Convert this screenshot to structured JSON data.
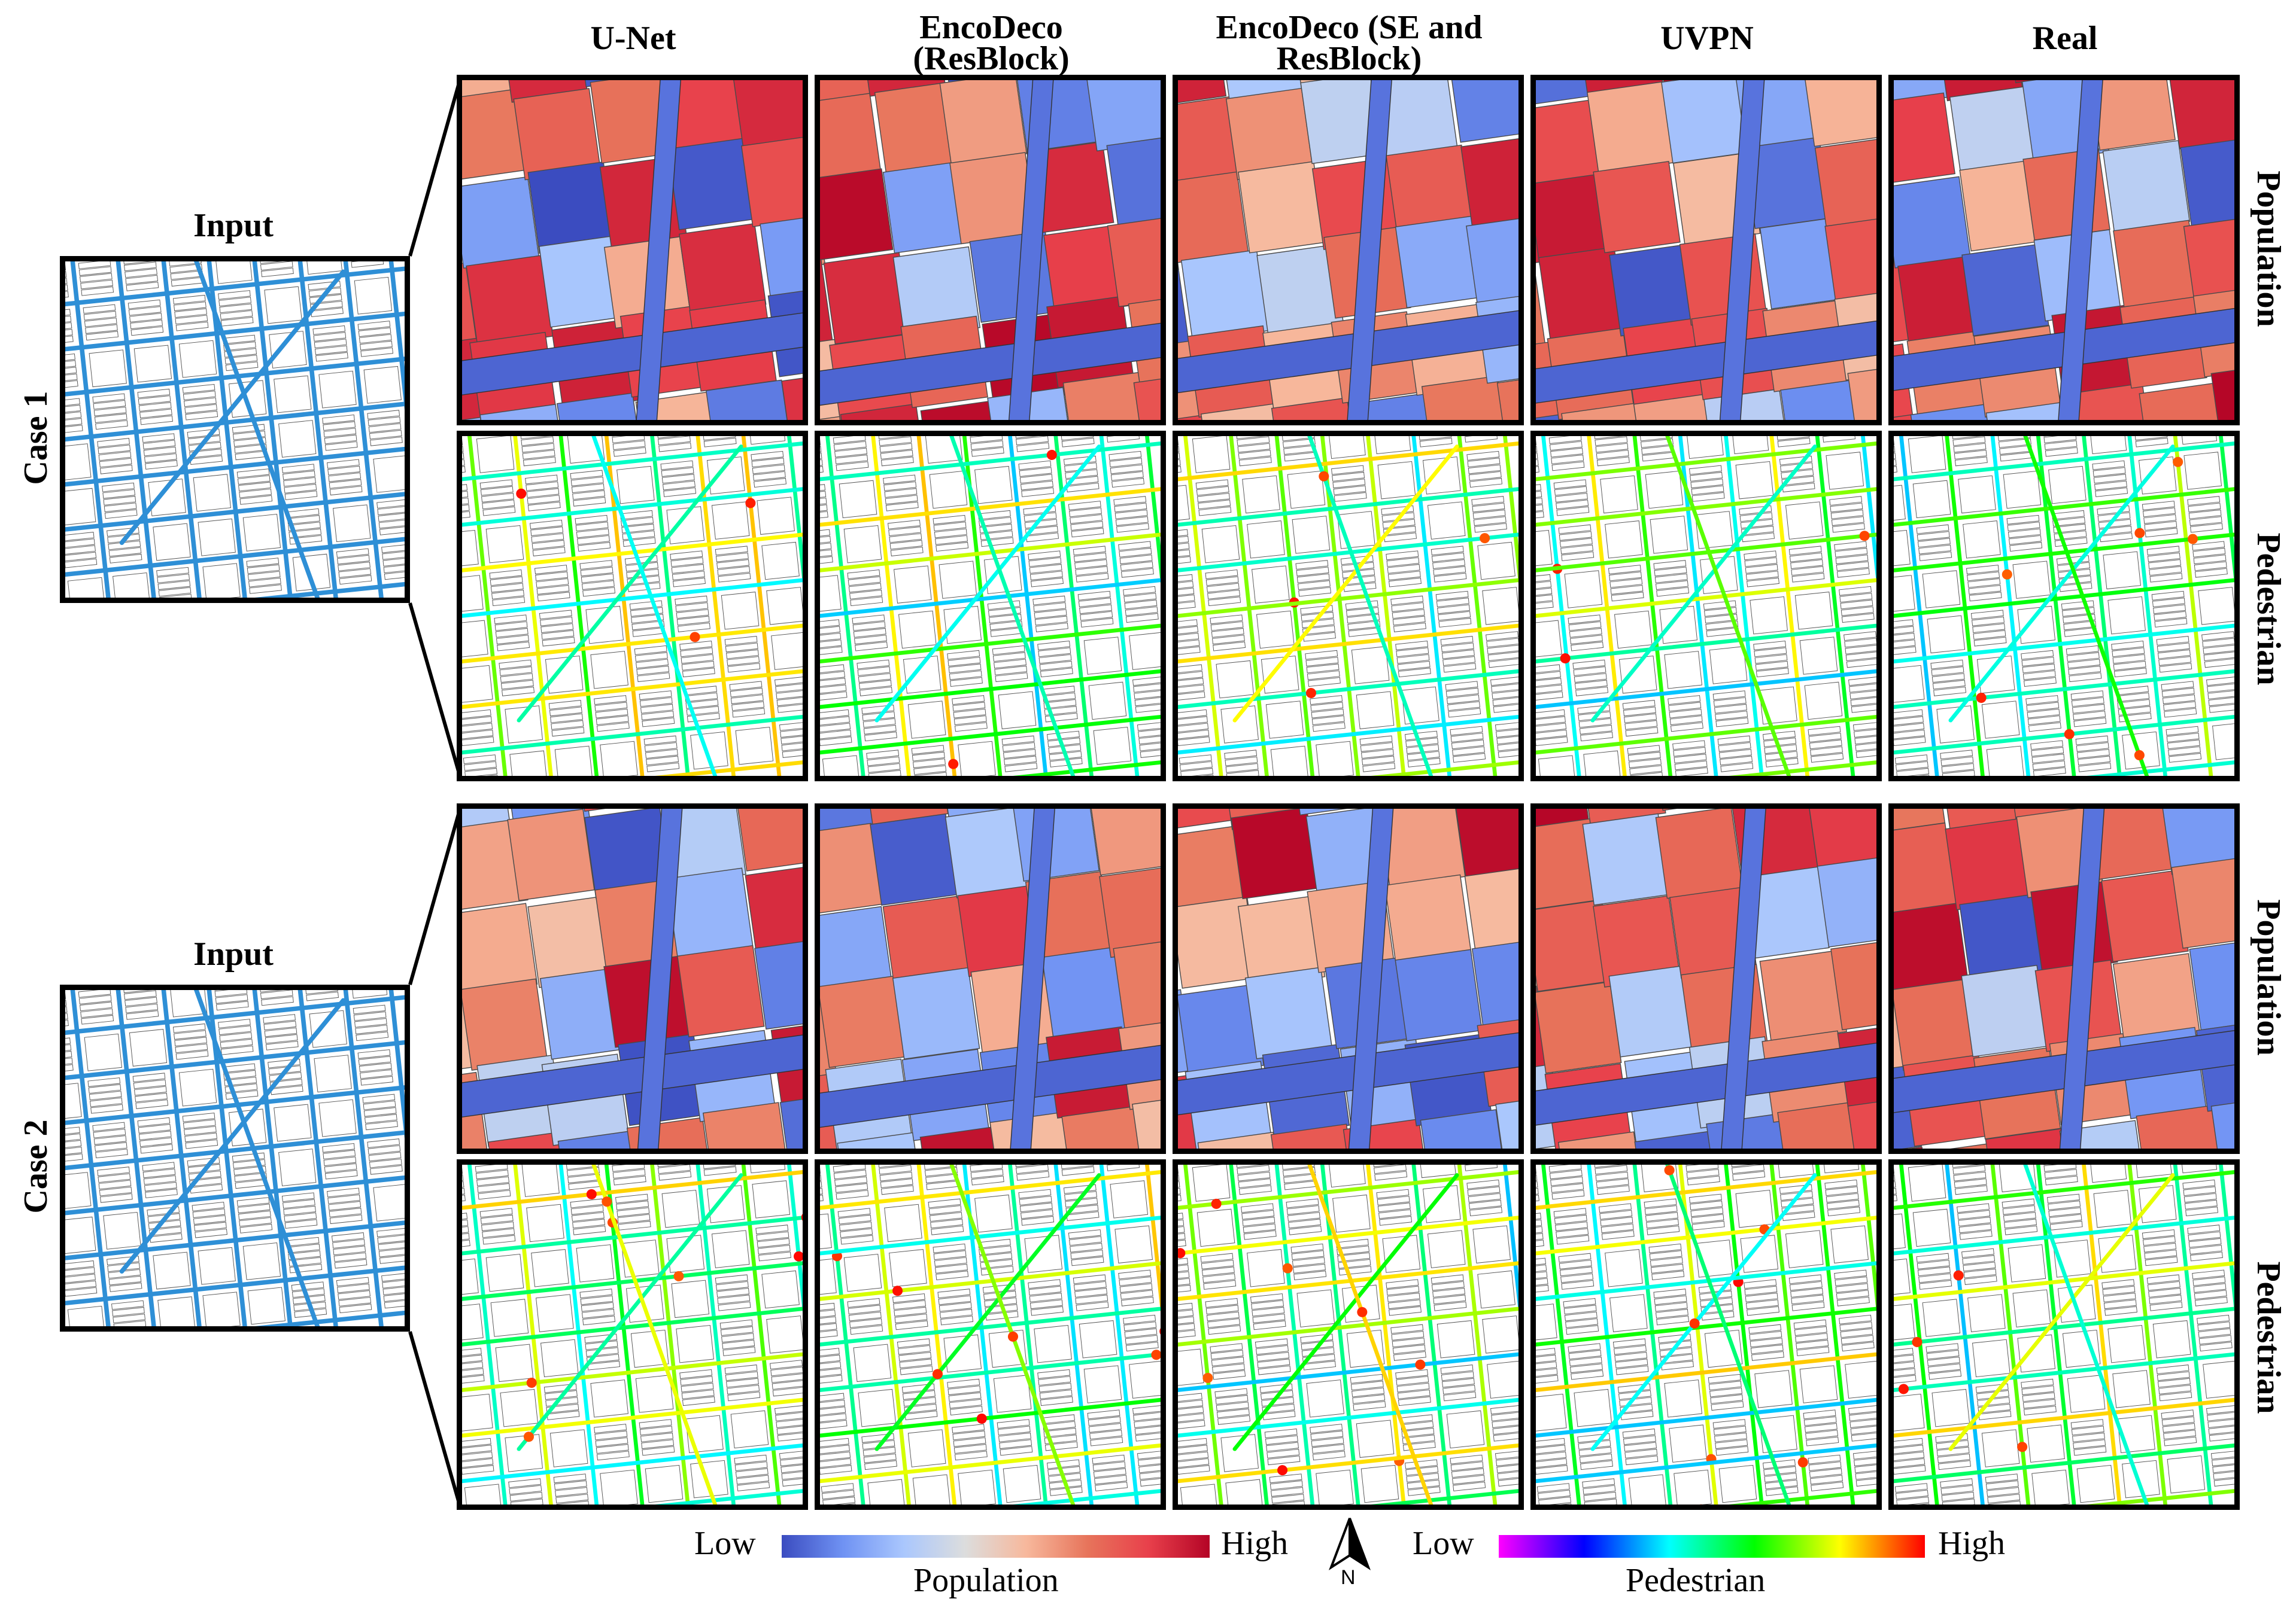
{
  "columns": [
    {
      "line1": "U-Net",
      "line2": ""
    },
    {
      "line1": "EncoDeco",
      "line2": "(ResBlock)"
    },
    {
      "line1": "EncoDeco (SE and",
      "line2": "ResBlock)"
    },
    {
      "line1": "UVPN",
      "line2": ""
    },
    {
      "line1": "Real",
      "line2": ""
    }
  ],
  "cases": [
    {
      "label": "Case 1",
      "input_title": "Input"
    },
    {
      "label": "Case 2",
      "input_title": "Input"
    }
  ],
  "rows": {
    "population": "Population",
    "pedestrian": "Pedestrian"
  },
  "legend": {
    "population": {
      "low": "Low",
      "high": "High",
      "title": "Population"
    },
    "pedestrian": {
      "low": "Low",
      "high": "High",
      "title": "Pedestrian"
    },
    "north": "N"
  },
  "colors": {
    "population_scale": [
      "#3b4cc0",
      "#6f92f3",
      "#aac7fd",
      "#dcdddd",
      "#f7b89c",
      "#e7745b",
      "#e8404b",
      "#b40426"
    ],
    "pedestrian_scale": [
      "#ff00ff",
      "#0000ff",
      "#00ffff",
      "#00ff00",
      "#ffff00",
      "#ff0000"
    ],
    "road_input": "#2e8fd6"
  }
}
